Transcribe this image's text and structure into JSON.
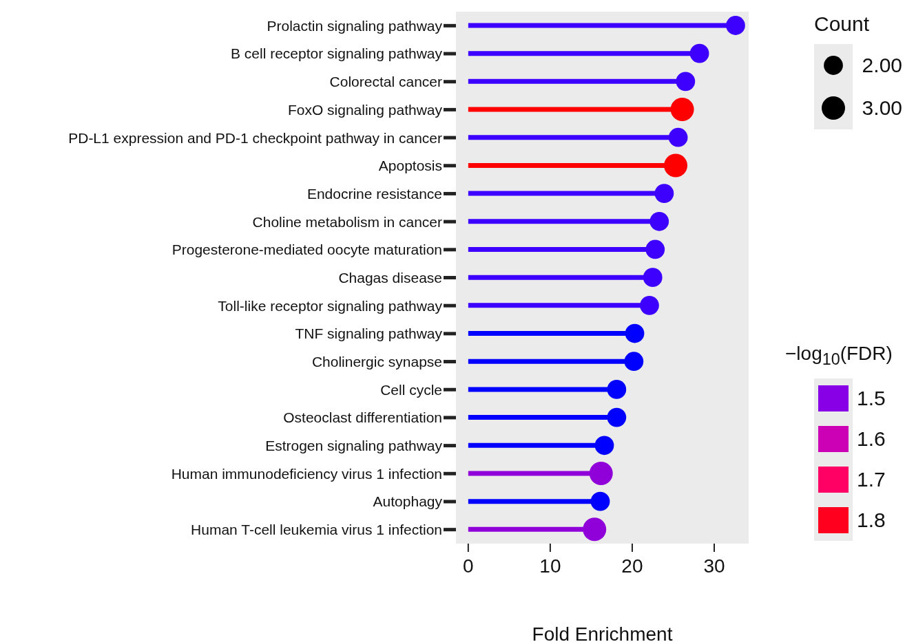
{
  "chart_data": {
    "type": "lollipop",
    "orientation": "horizontal",
    "xlabel": "Fold Enrichment",
    "categories": [
      "Prolactin signaling pathway",
      "B cell receptor signaling pathway",
      "Colorectal cancer",
      "FoxO signaling pathway",
      "PD-L1 expression and PD-1 checkpoint pathway in cancer",
      "Apoptosis",
      "Endocrine resistance",
      "Choline metabolism in cancer",
      "Progesterone-mediated oocyte maturation",
      "Chagas disease",
      "Toll-like receptor signaling pathway",
      "TNF signaling pathway",
      "Cholinergic synapse",
      "Cell cycle",
      "Osteoclast differentiation",
      "Estrogen signaling pathway",
      "Human immunodeficiency virus 1 infection",
      "Autophagy",
      "Human T-cell leukemia virus 1 infection"
    ],
    "values": [
      32.6,
      28.2,
      26.5,
      26.1,
      25.6,
      25.3,
      23.9,
      23.3,
      22.8,
      22.5,
      22.1,
      20.3,
      20.2,
      18.1,
      18.1,
      16.6,
      16.2,
      16.1,
      15.4
    ],
    "sizes": [
      2,
      2,
      2,
      3,
      2,
      3,
      2,
      2,
      2,
      2,
      2,
      2,
      2,
      2,
      2,
      2,
      3,
      2,
      3
    ],
    "colors": [
      "#3d00ff",
      "#3d00ff",
      "#3d00ff",
      "#ff0000",
      "#3d00ff",
      "#ff0000",
      "#3d00ff",
      "#3d00ff",
      "#3d00ff",
      "#3d00ff",
      "#3d00ff",
      "#0000ff",
      "#0000ff",
      "#0000ff",
      "#0000ff",
      "#0000ff",
      "#9000d8",
      "#0000ff",
      "#9000d8"
    ],
    "legend_title": "Count",
    "size_legend": [
      {
        "value": 2,
        "label": "2.00"
      },
      {
        "value": 3,
        "label": "3.00"
      }
    ],
    "clabel": "−log$_{10}$(FDR)",
    "clim": [
      1.3,
      1.8
    ],
    "cticks": [
      1.5,
      1.6,
      1.7,
      1.8
    ],
    "xlim": [
      -1.5,
      34.2
    ],
    "xticks": [
      0,
      10,
      20,
      30
    ]
  }
}
